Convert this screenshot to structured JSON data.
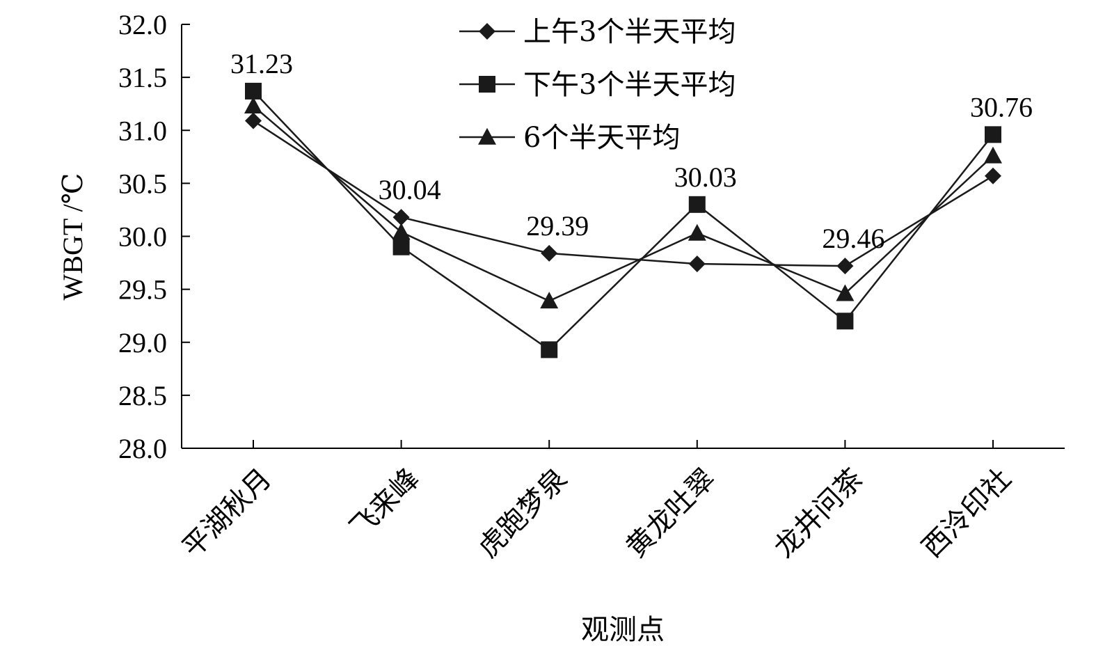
{
  "chart_data": {
    "type": "line",
    "xlabel": "观测点",
    "ylabel": "WBGT /℃",
    "ylim": [
      28.0,
      32.0
    ],
    "ytick_step": 0.5,
    "yticks": [
      "28.0",
      "28.5",
      "29.0",
      "29.5",
      "30.0",
      "30.5",
      "31.0",
      "31.5",
      "32.0"
    ],
    "categories": [
      "平湖秋月",
      "飞来峰",
      "虎跑梦泉",
      "黄龙吐翠",
      "龙井问茶",
      "西泠印社"
    ],
    "series": [
      {
        "name": "上午3个半天平均",
        "marker": "diamond",
        "values": [
          31.09,
          30.18,
          29.84,
          29.74,
          29.72,
          30.57
        ]
      },
      {
        "name": "下午3个半天平均",
        "marker": "square",
        "values": [
          31.37,
          29.9,
          28.93,
          30.3,
          29.2,
          30.96
        ]
      },
      {
        "name": "6个半天平均",
        "marker": "triangle",
        "values": [
          31.23,
          30.04,
          29.39,
          30.03,
          29.46,
          30.76
        ]
      }
    ],
    "data_labels": [
      "31.23",
      "30.04",
      "29.39",
      "30.03",
      "29.46",
      "30.76"
    ],
    "legend_position": "top-center",
    "grid": false,
    "colors": {
      "series": "#1a1a1a",
      "axis": "#000000"
    }
  }
}
